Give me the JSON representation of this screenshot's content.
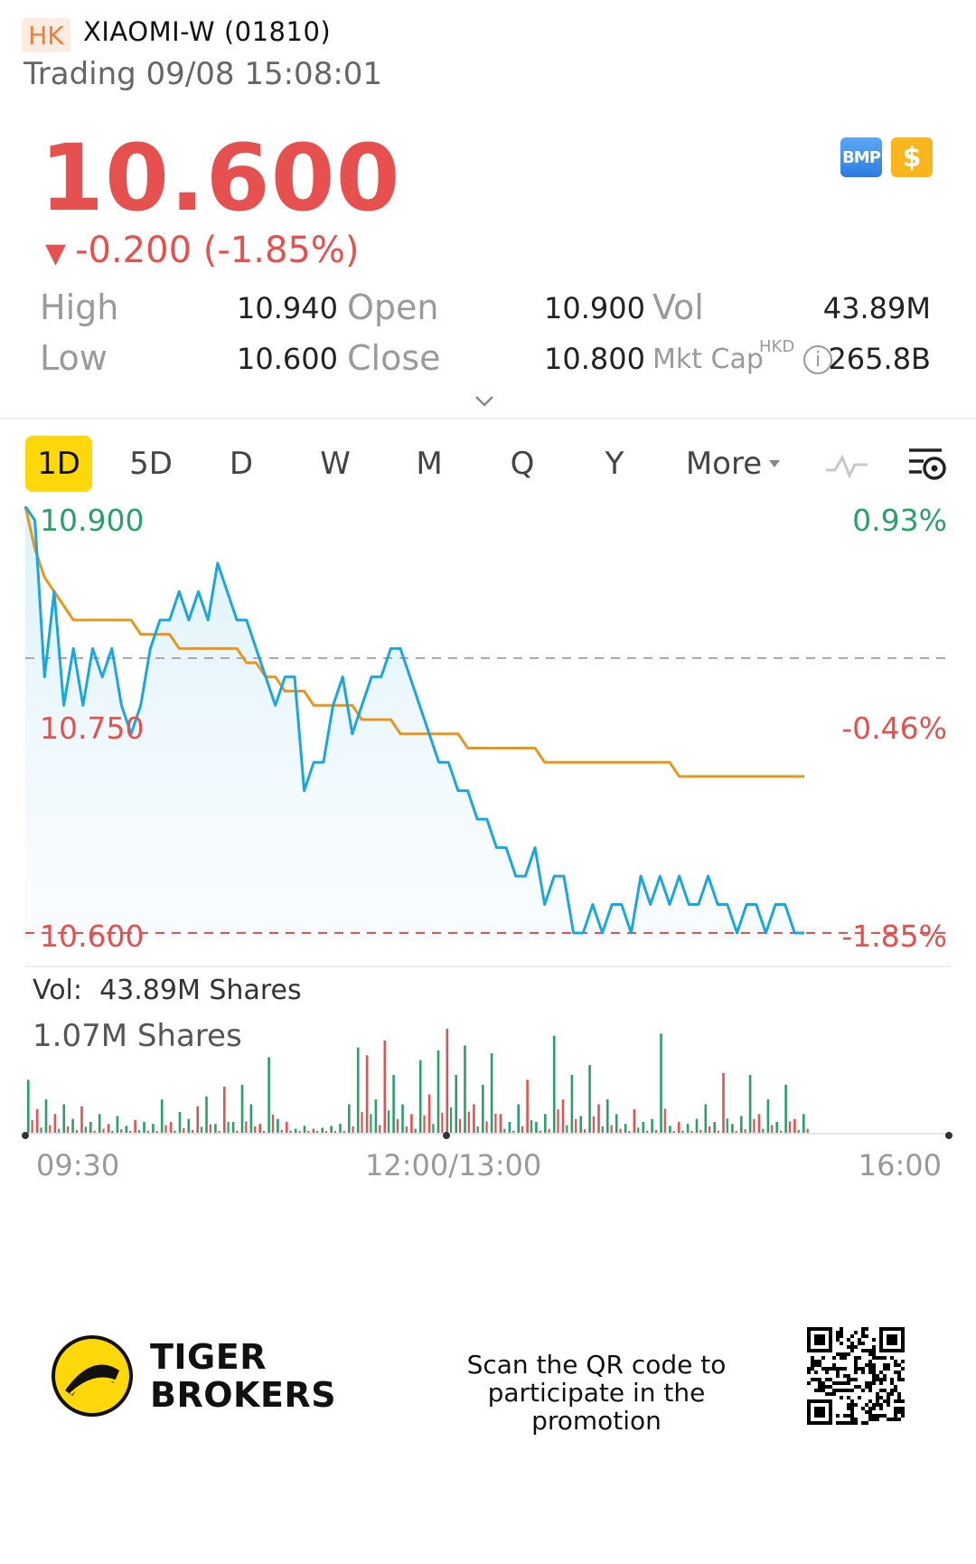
{
  "header": {
    "market": "HK",
    "ticker": "XIAOMI-W (01810)",
    "status": "Trading 09/08 15:08:01"
  },
  "quote": {
    "price": "10.600",
    "change": "-0.200 (-1.85%)",
    "change_arrow": "▼",
    "direction_color": "#e6504f"
  },
  "badges": {
    "bmp": "BMP",
    "dollar": "$"
  },
  "stats": {
    "high_label": "High",
    "high": "10.940",
    "low_label": "Low",
    "low": "10.600",
    "open_label": "Open",
    "open": "10.900",
    "close_label": "Close",
    "close": "10.800",
    "vol_label": "Vol",
    "vol": "43.89M",
    "mktcap_label": "Mkt Cap",
    "mktcap_currency": "HKD",
    "mktcap": "265.8B"
  },
  "tabs": [
    {
      "label": "1D",
      "active": true
    },
    {
      "label": "5D"
    },
    {
      "label": "D"
    },
    {
      "label": "W"
    },
    {
      "label": "M"
    },
    {
      "label": "Q"
    },
    {
      "label": "Y"
    },
    {
      "label": "More"
    }
  ],
  "chart": {
    "price_top": "10.900",
    "price_mid": "10.750",
    "price_low": "10.600",
    "pct_top": "0.93%",
    "pct_mid": "-0.46%",
    "pct_low": "-1.85%",
    "vol_total": "43.89M Shares",
    "vol_label": "Vol:",
    "vol_max": "1.07M Shares",
    "time_start": "09:30",
    "time_mid": "12:00/13:00",
    "time_end": "16:00",
    "price_color": "#1aa7e0",
    "avg_color": "#e8961c"
  },
  "chart_data": {
    "type": "line",
    "x_ticks": [
      "09:30",
      "12:00/13:00",
      "16:00"
    ],
    "ylim": [
      10.6,
      10.9
    ],
    "reference_close": 10.8,
    "series": [
      {
        "values": [
          10.9,
          10.89,
          10.78,
          10.84,
          10.76,
          10.8,
          10.76,
          10.8,
          10.78,
          10.8,
          10.76,
          10.74,
          10.76,
          10.8,
          10.82,
          10.82,
          10.84,
          10.82,
          10.84,
          10.82,
          10.86,
          10.84,
          10.82,
          10.82,
          10.8,
          10.78,
          10.76,
          10.78,
          10.78,
          10.7,
          10.72,
          10.72,
          10.76,
          10.78,
          10.74,
          10.76,
          10.78,
          10.78,
          10.8,
          10.8,
          10.78,
          10.76,
          10.74,
          10.72,
          10.72,
          10.7,
          10.7,
          10.68,
          10.68,
          10.66,
          10.66,
          10.64,
          10.64,
          10.66,
          10.62,
          10.64,
          10.64,
          10.6,
          10.6,
          10.62,
          10.6,
          10.62,
          10.62,
          10.6,
          10.64,
          10.62,
          10.64,
          10.62,
          10.64,
          10.62,
          10.62,
          10.64,
          10.62,
          10.62,
          10.6,
          10.62,
          10.62,
          10.6,
          10.62,
          10.62,
          10.6,
          10.6
        ]
      },
      {
        "values": [
          10.9,
          10.87,
          10.85,
          10.84,
          10.83,
          10.82,
          10.82,
          10.82,
          10.82,
          10.82,
          10.82,
          10.82,
          10.81,
          10.81,
          10.81,
          10.81,
          10.8,
          10.8,
          10.8,
          10.8,
          10.8,
          10.8,
          10.8,
          10.79,
          10.79,
          10.78,
          10.78,
          10.77,
          10.77,
          10.77,
          10.76,
          10.76,
          10.76,
          10.76,
          10.76,
          10.75,
          10.75,
          10.75,
          10.75,
          10.74,
          10.74,
          10.74,
          10.74,
          10.74,
          10.74,
          10.74,
          10.73,
          10.73,
          10.73,
          10.73,
          10.73,
          10.73,
          10.73,
          10.73,
          10.72,
          10.72,
          10.72,
          10.72,
          10.72,
          10.72,
          10.72,
          10.72,
          10.72,
          10.72,
          10.72,
          10.72,
          10.72,
          10.72,
          10.71,
          10.71,
          10.71,
          10.71,
          10.71,
          10.71,
          10.71,
          10.71,
          10.71,
          10.71,
          10.71,
          10.71,
          10.71,
          10.71
        ]
      }
    ],
    "volume_max": 1.07,
    "volume_unit": "M Shares",
    "volume": [
      {
        "v": 0.55,
        "up": true
      },
      {
        "v": 0.25,
        "up": false
      },
      {
        "v": 0.35,
        "up": true
      },
      {
        "v": 0.2,
        "up": false
      },
      {
        "v": 0.3,
        "up": true
      },
      {
        "v": 0.15,
        "up": true
      },
      {
        "v": 0.28,
        "up": false
      },
      {
        "v": 0.12,
        "up": true
      },
      {
        "v": 0.2,
        "up": true
      },
      {
        "v": 0.1,
        "up": false
      },
      {
        "v": 0.18,
        "up": true
      },
      {
        "v": 0.08,
        "up": true
      },
      {
        "v": 0.14,
        "up": false
      },
      {
        "v": 0.12,
        "up": true
      },
      {
        "v": 0.1,
        "up": true
      },
      {
        "v": 0.35,
        "up": true
      },
      {
        "v": 0.12,
        "up": false
      },
      {
        "v": 0.22,
        "up": true
      },
      {
        "v": 0.15,
        "up": true
      },
      {
        "v": 0.28,
        "up": false
      },
      {
        "v": 0.38,
        "up": true
      },
      {
        "v": 0.1,
        "up": true
      },
      {
        "v": 0.48,
        "up": false
      },
      {
        "v": 0.12,
        "up": true
      },
      {
        "v": 0.5,
        "up": true
      },
      {
        "v": 0.3,
        "up": true
      },
      {
        "v": 0.1,
        "up": false
      },
      {
        "v": 0.78,
        "up": true
      },
      {
        "v": 0.15,
        "up": true
      },
      {
        "v": 0.12,
        "up": false
      },
      {
        "v": 0.05,
        "up": true
      },
      {
        "v": 0.08,
        "up": true
      },
      {
        "v": 0.05,
        "up": false
      },
      {
        "v": 0.06,
        "up": true
      },
      {
        "v": 0.08,
        "up": true
      },
      {
        "v": 0.1,
        "up": true
      },
      {
        "v": 0.3,
        "up": true
      },
      {
        "v": 0.88,
        "up": true
      },
      {
        "v": 0.8,
        "up": false
      },
      {
        "v": 0.35,
        "up": true
      },
      {
        "v": 0.95,
        "up": false
      },
      {
        "v": 0.6,
        "up": true
      },
      {
        "v": 0.3,
        "up": true
      },
      {
        "v": 0.2,
        "up": false
      },
      {
        "v": 0.75,
        "up": true
      },
      {
        "v": 0.4,
        "up": false
      },
      {
        "v": 0.85,
        "up": true
      },
      {
        "v": 1.07,
        "up": false
      },
      {
        "v": 0.6,
        "up": true
      },
      {
        "v": 0.9,
        "up": true
      },
      {
        "v": 0.3,
        "up": false
      },
      {
        "v": 0.5,
        "up": true
      },
      {
        "v": 0.82,
        "up": true
      },
      {
        "v": 0.2,
        "up": false
      },
      {
        "v": 0.12,
        "up": true
      },
      {
        "v": 0.3,
        "up": true
      },
      {
        "v": 0.55,
        "up": false
      },
      {
        "v": 0.12,
        "up": true
      },
      {
        "v": 0.2,
        "up": true
      },
      {
        "v": 1.0,
        "up": true
      },
      {
        "v": 0.35,
        "up": false
      },
      {
        "v": 0.6,
        "up": true
      },
      {
        "v": 0.18,
        "up": true
      },
      {
        "v": 0.7,
        "up": true
      },
      {
        "v": 0.3,
        "up": false
      },
      {
        "v": 0.35,
        "up": true
      },
      {
        "v": 0.2,
        "up": true
      },
      {
        "v": 0.1,
        "up": true
      },
      {
        "v": 0.25,
        "up": false
      },
      {
        "v": 0.12,
        "up": true
      },
      {
        "v": 0.15,
        "up": true
      },
      {
        "v": 1.02,
        "up": true
      },
      {
        "v": 0.08,
        "up": true
      },
      {
        "v": 0.12,
        "up": false
      },
      {
        "v": 0.1,
        "up": true
      },
      {
        "v": 0.15,
        "up": true
      },
      {
        "v": 0.3,
        "up": true
      },
      {
        "v": 0.12,
        "up": true
      },
      {
        "v": 0.62,
        "up": false
      },
      {
        "v": 0.1,
        "up": true
      },
      {
        "v": 0.18,
        "up": true
      },
      {
        "v": 0.6,
        "up": true
      },
      {
        "v": 0.2,
        "up": false
      },
      {
        "v": 0.35,
        "up": true
      },
      {
        "v": 0.12,
        "up": true
      },
      {
        "v": 0.5,
        "up": true
      },
      {
        "v": 0.15,
        "up": false
      },
      {
        "v": 0.2,
        "up": true
      }
    ]
  },
  "footer": {
    "brand_line1": "TIGER",
    "brand_line2": "BROKERS",
    "message_line1": "Scan the QR code to",
    "message_line2": "participate in the promotion"
  }
}
